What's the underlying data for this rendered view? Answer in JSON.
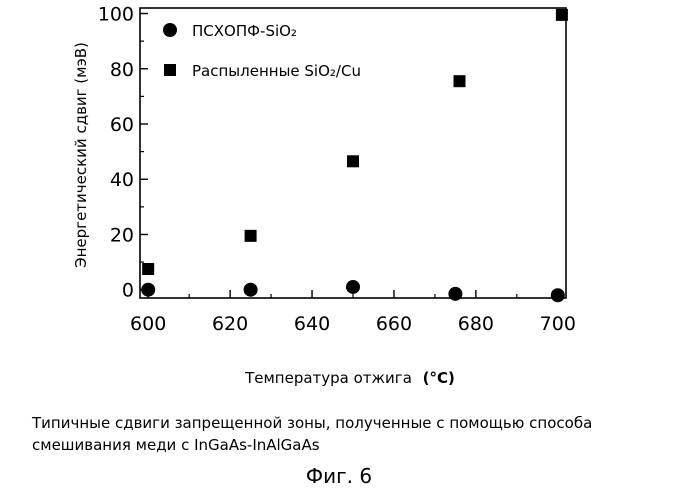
{
  "chart_data": {
    "type": "scatter",
    "xlabel": "Температура отжига",
    "xlabel_unit": "(°C)",
    "ylabel": "Энергетический сдвиг (мэВ)",
    "xlim": [
      598,
      702
    ],
    "ylim": [
      -3,
      102
    ],
    "xticks": [
      600,
      620,
      640,
      660,
      680,
      700
    ],
    "yticks": [
      0,
      20,
      40,
      60,
      80,
      100
    ],
    "grid": false,
    "legend_position": "top-left",
    "series": [
      {
        "name": "ПСХОПФ-SiO₂",
        "marker": "circle",
        "color": "#000000",
        "points": [
          {
            "x": 600,
            "y": 0
          },
          {
            "x": 625,
            "y": 0
          },
          {
            "x": 650,
            "y": 1
          },
          {
            "x": 675,
            "y": -1.5
          },
          {
            "x": 700,
            "y": -2
          }
        ]
      },
      {
        "name": "Распыленные SiO₂/Cu",
        "marker": "square",
        "color": "#000000",
        "points": [
          {
            "x": 600,
            "y": 7.5
          },
          {
            "x": 625,
            "y": 19.5
          },
          {
            "x": 650,
            "y": 46.5
          },
          {
            "x": 676,
            "y": 75.5
          },
          {
            "x": 701,
            "y": 99.5
          }
        ]
      }
    ]
  },
  "caption": "Типичные сдвиги запрещенной зоны, полученные с помощью способа смешивания меди с InGaAs-InAlGaAs",
  "figure_label": "Фиг. 6"
}
